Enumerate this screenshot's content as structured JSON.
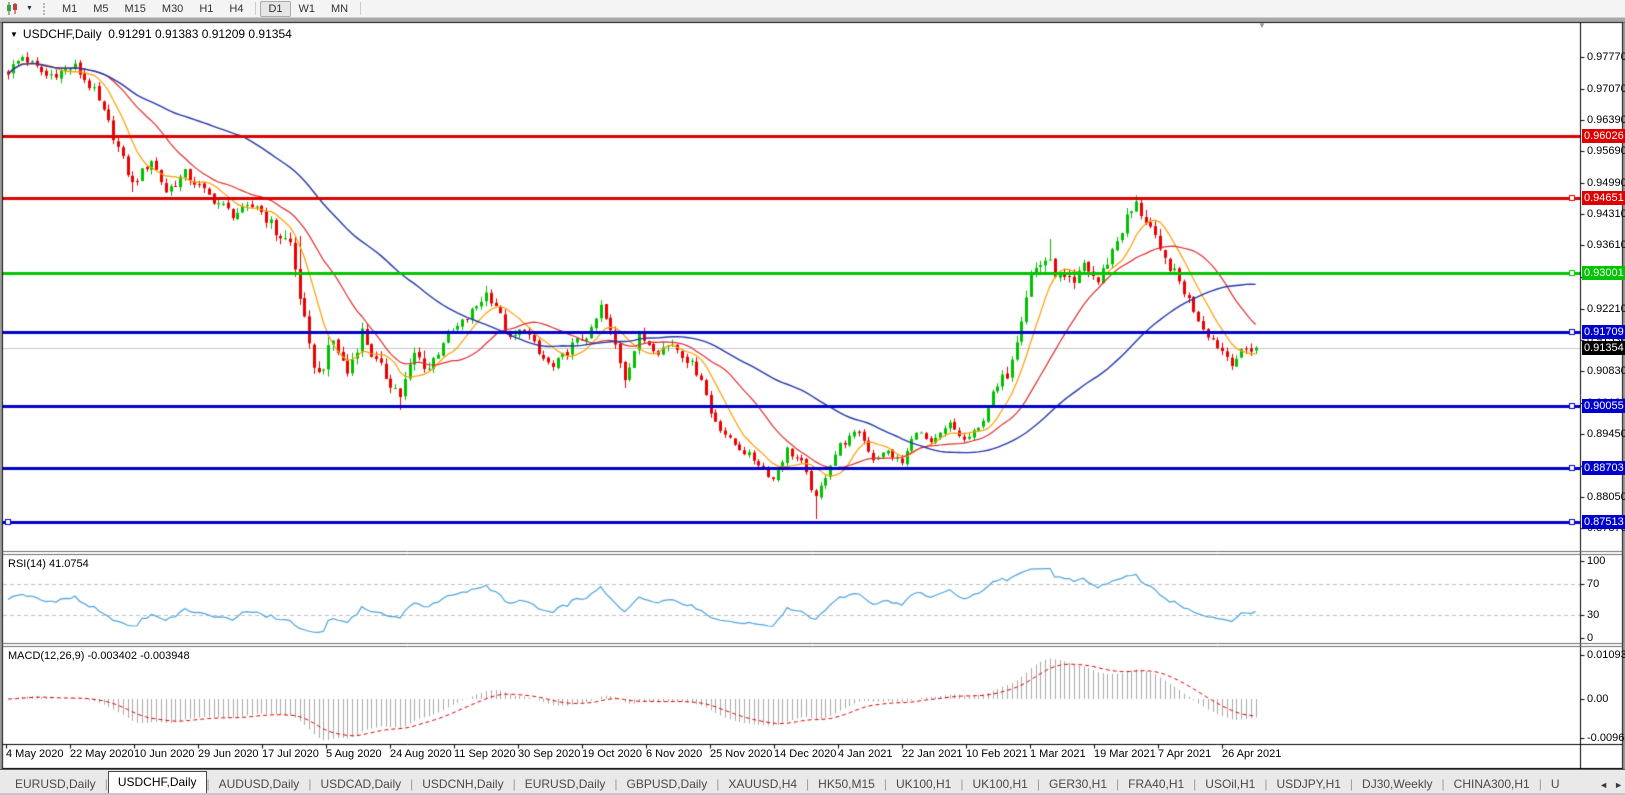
{
  "toolbar": {
    "chart_type_icon": "candlestick-chart-icon",
    "dropdown_icon": "▼",
    "timeframes": [
      "M1",
      "M5",
      "M15",
      "M30",
      "H1",
      "H4",
      "D1",
      "W1",
      "MN"
    ],
    "active_timeframe": "D1"
  },
  "chart_window": {
    "title_marker_icon": "▼",
    "title_symbol": "USDCHF,Daily",
    "title_ohlc": "0.91291 0.91383 0.91209 0.91354",
    "shift_marker_icon": "▼",
    "rsi_label": "RSI(14) 41.0754",
    "macd_label": "MACD(12,26,9) -0.003402 -0.003948",
    "price_axis_ticks": [
      "0.97770",
      "0.97070",
      "0.96390",
      "0.95690",
      "0.94990",
      "0.94310",
      "0.93610",
      "0.92910",
      "0.92210",
      "0.91530",
      "0.90830",
      "0.90130",
      "0.89450",
      "0.88750",
      "0.88050",
      "0.87370"
    ],
    "price_badges": [
      {
        "value": "0.96026",
        "color": "#dd0000"
      },
      {
        "value": "0.94651",
        "color": "#dd0000"
      },
      {
        "value": "0.93001",
        "color": "#00c400"
      },
      {
        "value": "0.91709",
        "color": "#0000cc"
      },
      {
        "value": "0.91354",
        "color": "#000000"
      },
      {
        "value": "0.90055",
        "color": "#0000cc"
      },
      {
        "value": "0.88703",
        "color": "#0000cc"
      },
      {
        "value": "0.87513",
        "color": "#0000cc"
      }
    ],
    "rsi_axis_ticks": [
      "100",
      "70",
      "30",
      "0"
    ],
    "macd_axis_ticks": [
      "0.010933",
      "0.00",
      "-0.009653"
    ]
  },
  "chart_data": {
    "type": "candlestick",
    "symbol": "USDCHF",
    "timeframe": "Daily",
    "last_bar": {
      "open": 0.91291,
      "high": 0.91383,
      "low": 0.91209,
      "close": 0.91354
    },
    "candle_up_color": "#00c000",
    "candle_down_color": "#ee0000",
    "price_keypoints": [
      [
        0,
        0.9745
      ],
      [
        3,
        0.9778
      ],
      [
        8,
        0.9735
      ],
      [
        14,
        0.9755
      ],
      [
        18,
        0.97
      ],
      [
        21,
        0.963
      ],
      [
        26,
        0.9495
      ],
      [
        30,
        0.955
      ],
      [
        33,
        0.948
      ],
      [
        37,
        0.952
      ],
      [
        42,
        0.947
      ],
      [
        47,
        0.943
      ],
      [
        52,
        0.945
      ],
      [
        56,
        0.939
      ],
      [
        59,
        0.9365
      ],
      [
        61,
        0.925
      ],
      [
        63,
        0.913
      ],
      [
        65,
        0.9075
      ],
      [
        68,
        0.915
      ],
      [
        71,
        0.908
      ],
      [
        74,
        0.917
      ],
      [
        77,
        0.91
      ],
      [
        80,
        0.906
      ],
      [
        82,
        0.903
      ],
      [
        85,
        0.912
      ],
      [
        88,
        0.909
      ],
      [
        91,
        0.915
      ],
      [
        96,
        0.92
      ],
      [
        100,
        0.9255
      ],
      [
        102,
        0.923
      ],
      [
        105,
        0.915
      ],
      [
        108,
        0.918
      ],
      [
        111,
        0.912
      ],
      [
        114,
        0.909
      ],
      [
        118,
        0.914
      ],
      [
        122,
        0.917
      ],
      [
        124,
        0.9225
      ],
      [
        127,
        0.914
      ],
      [
        129,
        0.907
      ],
      [
        132,
        0.916
      ],
      [
        136,
        0.913
      ],
      [
        139,
        0.9145
      ],
      [
        142,
        0.911
      ],
      [
        145,
        0.907
      ],
      [
        147,
        0.899
      ],
      [
        151,
        0.893
      ],
      [
        154,
        0.8905
      ],
      [
        157,
        0.888
      ],
      [
        160,
        0.8845
      ],
      [
        163,
        0.891
      ],
      [
        166,
        0.888
      ],
      [
        169,
        0.88
      ],
      [
        172,
        0.888
      ],
      [
        174,
        0.892
      ],
      [
        178,
        0.895
      ],
      [
        181,
        0.889
      ],
      [
        184,
        0.8905
      ],
      [
        187,
        0.888
      ],
      [
        190,
        0.8955
      ],
      [
        193,
        0.892
      ],
      [
        197,
        0.8965
      ],
      [
        200,
        0.893
      ],
      [
        203,
        0.8955
      ],
      [
        206,
        0.903
      ],
      [
        209,
        0.908
      ],
      [
        211,
        0.916
      ],
      [
        214,
        0.93
      ],
      [
        217,
        0.933
      ],
      [
        220,
        0.929
      ],
      [
        223,
        0.927
      ],
      [
        225,
        0.932
      ],
      [
        228,
        0.928
      ],
      [
        231,
        0.935
      ],
      [
        234,
        0.942
      ],
      [
        236,
        0.945
      ],
      [
        239,
        0.94
      ],
      [
        241,
        0.934
      ],
      [
        244,
        0.93
      ],
      [
        247,
        0.924
      ],
      [
        250,
        0.918
      ],
      [
        253,
        0.914
      ],
      [
        256,
        0.9105
      ],
      [
        259,
        0.913
      ],
      [
        261,
        0.91354
      ]
    ],
    "spikes": [
      {
        "i": 3,
        "high": 0.9781
      },
      {
        "i": 26,
        "low": 0.9479
      },
      {
        "i": 61,
        "high": 0.9382
      },
      {
        "i": 82,
        "low": 0.8998
      },
      {
        "i": 100,
        "high": 0.9272
      },
      {
        "i": 129,
        "low": 0.9046
      },
      {
        "i": 169,
        "low": 0.8757
      },
      {
        "i": 218,
        "high": 0.9375
      },
      {
        "i": 236,
        "high": 0.9468
      }
    ],
    "volatility_zones": [
      {
        "from": 55,
        "to": 90,
        "amp": 0.0032
      },
      {
        "from": 150,
        "to": 205,
        "amp": 0.0016
      },
      {
        "from": 208,
        "to": 242,
        "amp": 0.003
      }
    ],
    "default_amp": 0.0021,
    "horizontal_lines": [
      {
        "price": 0.96026,
        "color": "#dd0000",
        "width": 3,
        "handle_right": false,
        "handle_left": false
      },
      {
        "price": 0.94651,
        "color": "#dd0000",
        "width": 3,
        "handle_right": true,
        "handle_left": false
      },
      {
        "price": 0.93001,
        "color": "#00c400",
        "width": 3,
        "handle_right": true,
        "handle_left": false
      },
      {
        "price": 0.91709,
        "color": "#0000cc",
        "width": 3,
        "handle_right": true,
        "handle_left": false
      },
      {
        "price": 0.90055,
        "color": "#0000cc",
        "width": 3,
        "handle_right": true,
        "handle_left": false
      },
      {
        "price": 0.88703,
        "color": "#0000cc",
        "width": 3,
        "handle_right": true,
        "handle_left": false
      },
      {
        "price": 0.87513,
        "color": "#0000cc",
        "width": 3,
        "handle_right": true,
        "handle_left": true
      }
    ],
    "current_price": 0.91354,
    "current_price_line_color": "#c8c8c8",
    "moving_averages": [
      {
        "name": "fast",
        "period": 8,
        "color": "#ff9c00"
      },
      {
        "name": "mid",
        "period": 20,
        "color": "#e03030"
      },
      {
        "name": "slow",
        "period": 50,
        "color": "#2438aa"
      }
    ],
    "rsi": {
      "period": 14,
      "last": 41.0754,
      "levels": [
        70,
        30
      ],
      "range": [
        0,
        100
      ],
      "color": "#4da3e0",
      "level_color": "#c0c0c0"
    },
    "macd": {
      "fast": 12,
      "slow": 26,
      "signal": 9,
      "last_macd": -0.003402,
      "last_signal": -0.003948,
      "axis_max": 0.010933,
      "axis_min": -0.009653,
      "histogram_color": "#a9a9a9",
      "signal_color": "#dd0000"
    },
    "x_axis_dates": [
      "4 May 2020",
      "22 May 2020",
      "10 Jun 2020",
      "29 Jun 2020",
      "17 Jul 2020",
      "5 Aug 2020",
      "24 Aug 2020",
      "11 Sep 2020",
      "30 Sep 2020",
      "19 Oct 2020",
      "6 Nov 2020",
      "25 Nov 2020",
      "14 Dec 2020",
      "4 Jan 2021",
      "22 Jan 2021",
      "10 Feb 2021",
      "1 Mar 2021",
      "19 Mar 2021",
      "7 Apr 2021",
      "26 Apr 2021"
    ]
  },
  "tab_bar": {
    "separator": "|",
    "tabs": [
      "EURUSD,Daily",
      "USDCHF,Daily",
      "AUDUSD,Daily",
      "USDCAD,Daily",
      "USDCNH,Daily",
      "EURUSD,Daily",
      "GBPUSD,Daily",
      "XAUUSD,H4",
      "HK50,M15",
      "UK100,H1",
      "UK100,H1",
      "GER30,H1",
      "FRA40,H1",
      "USOil,H1",
      "USDJPY,H1",
      "DJ30,Weekly",
      "CHINA300,H1",
      "U"
    ],
    "active_tab": "USDCHF,Daily",
    "scroll_left_icon": "◄",
    "scroll_right_icon": "►"
  }
}
